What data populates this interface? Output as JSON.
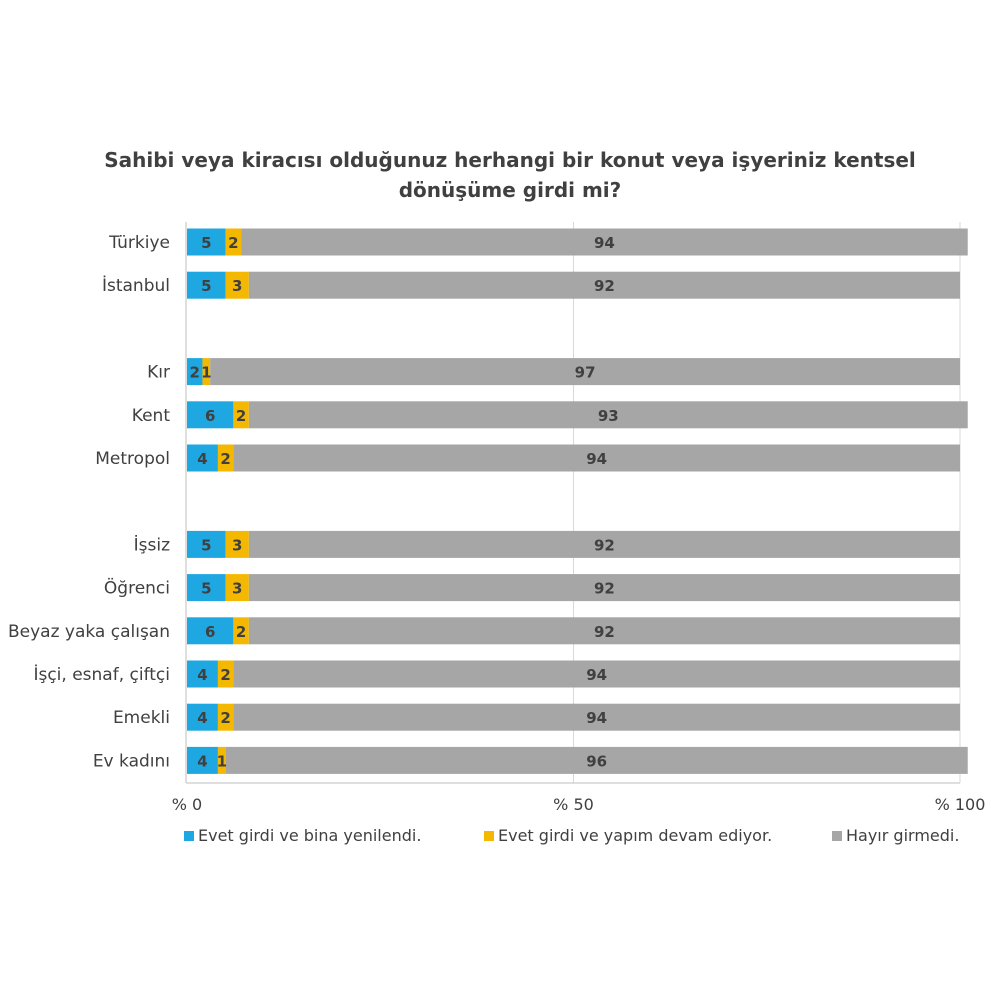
{
  "chart_data": {
    "type": "bar",
    "orientation": "horizontal",
    "stacked": true,
    "title_lines": [
      "Sahibi veya kiracısı olduğunuz herhangi bir konut veya işyeriniz kentsel",
      "dönüşüme girdi mi?"
    ],
    "groups": [
      [
        "Türkiye",
        "İstanbul"
      ],
      [
        "Kır",
        "Kent",
        "Metropol"
      ],
      [
        "İşsiz",
        "Öğrenci",
        "Beyaz yaka çalışan",
        "İşçi, esnaf, çiftçi",
        "Emekli",
        "Ev kadını"
      ]
    ],
    "categories": [
      "Türkiye",
      "İstanbul",
      "Kır",
      "Kent",
      "Metropol",
      "İşsiz",
      "Öğrenci",
      "Beyaz yaka çalışan",
      "İşçi, esnaf, çiftçi",
      "Emekli",
      "Ev kadını"
    ],
    "series": [
      {
        "name": "Evet girdi ve bina yenilendi.",
        "color": "#1ea7e1",
        "values": [
          5,
          5,
          2,
          6,
          4,
          5,
          5,
          6,
          4,
          4,
          4
        ]
      },
      {
        "name": "Evet girdi ve yapım devam ediyor.",
        "color": "#f5b800",
        "values": [
          2,
          3,
          1,
          2,
          2,
          3,
          3,
          2,
          2,
          2,
          1
        ]
      },
      {
        "name": "Hayır girmedi.",
        "color": "#a6a6a6",
        "values": [
          94,
          92,
          97,
          93,
          94,
          92,
          92,
          92,
          94,
          94,
          96
        ]
      }
    ],
    "xlim": [
      0,
      100
    ],
    "x_ticks": [
      0,
      50,
      100
    ],
    "x_tick_labels": [
      "% 0",
      "% 50",
      "% 100"
    ],
    "grid": true,
    "legend_position": "bottom"
  }
}
